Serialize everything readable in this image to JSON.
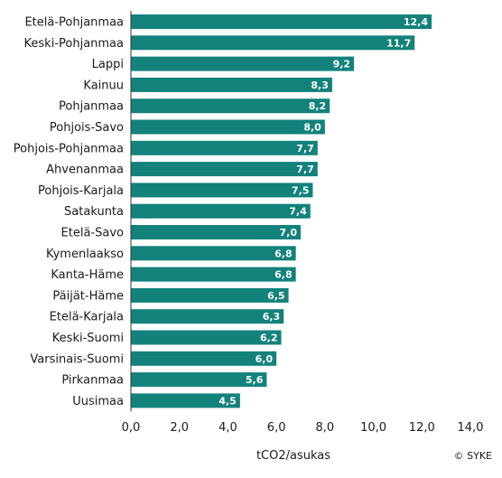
{
  "chart_data": {
    "type": "bar",
    "orientation": "horizontal",
    "categories": [
      "Etelä-Pohjanmaa",
      "Keski-Pohjanmaa",
      "Lappi",
      "Kainuu",
      "Pohjanmaa",
      "Pohjois-Savo",
      "Pohjois-Pohjanmaa",
      "Ahvenanmaa",
      "Pohjois-Karjala",
      "Satakunta",
      "Etelä-Savo",
      "Kymenlaakso",
      "Kanta-Häme",
      "Päijät-Häme",
      "Etelä-Karjala",
      "Keski-Suomi",
      "Varsinais-Suomi",
      "Pirkanmaa",
      "Uusimaa"
    ],
    "values": [
      12.4,
      11.7,
      9.2,
      8.3,
      8.2,
      8.0,
      7.7,
      7.7,
      7.5,
      7.4,
      7.0,
      6.8,
      6.8,
      6.5,
      6.3,
      6.2,
      6.0,
      5.6,
      4.5
    ],
    "value_labels": [
      "12,4",
      "11,7",
      "9,2",
      "8,3",
      "8,2",
      "8,0",
      "7,7",
      "7,7",
      "7,5",
      "7,4",
      "7,0",
      "6,8",
      "6,8",
      "6,5",
      "6,3",
      "6,2",
      "6,0",
      "5,6",
      "4,5"
    ],
    "xlim": [
      0,
      14
    ],
    "ticks": [
      0,
      2,
      4,
      6,
      8,
      10,
      12,
      14
    ],
    "tick_labels": [
      "0,0",
      "2,0",
      "4,0",
      "6,0",
      "8,0",
      "10,0",
      "12,0",
      "14,0"
    ],
    "xlabel": "tCO2/asukas",
    "ylabel": "",
    "title": "",
    "grid": false,
    "bar_color": "#12827b"
  },
  "credit": "© SYKE"
}
